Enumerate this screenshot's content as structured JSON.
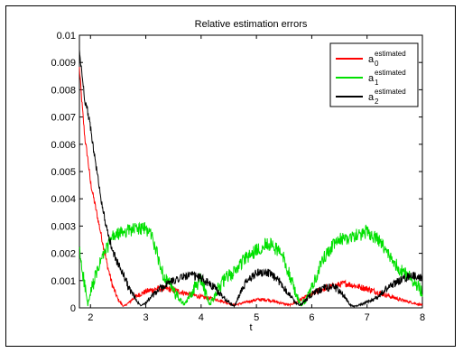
{
  "chart_data": {
    "type": "line",
    "title": "Relative estimation errors",
    "xlabel": "t",
    "ylabel": "",
    "xlim": [
      1.8,
      8
    ],
    "ylim": [
      0,
      0.01
    ],
    "x_ticks": [
      2,
      3,
      4,
      5,
      6,
      7,
      8
    ],
    "y_ticks": [
      0,
      0.001,
      0.002,
      0.003,
      0.004,
      0.005,
      0.006,
      0.007,
      0.008,
      0.009,
      0.01
    ],
    "y_tick_labels": [
      "0",
      "0.001",
      "0.002",
      "0.003",
      "0.004",
      "0.005",
      "0.006",
      "0.007",
      "0.008",
      "0.009",
      "0.01"
    ],
    "grid": false,
    "legend_position": "top-right",
    "series": [
      {
        "name": "a0 estimated",
        "name_base": "a",
        "name_sub": "0",
        "name_sup": "estimated",
        "color": "#ff0000",
        "noise": 0.00012,
        "x": [
          1.8,
          1.85,
          1.9,
          1.95,
          2.0,
          2.1,
          2.2,
          2.3,
          2.4,
          2.5,
          2.6,
          2.7,
          2.8,
          2.9,
          3.0,
          3.2,
          3.4,
          3.6,
          3.8,
          4.0,
          4.3,
          4.6,
          4.8,
          5.0,
          5.2,
          5.4,
          5.6,
          5.8,
          6.0,
          6.2,
          6.4,
          6.6,
          6.8,
          7.0,
          7.3,
          7.6,
          7.8,
          8.0
        ],
        "y": [
          0.0088,
          0.0074,
          0.0062,
          0.0055,
          0.0046,
          0.0036,
          0.0026,
          0.0016,
          0.0008,
          0.0003,
          5e-05,
          0.0002,
          0.0004,
          0.0005,
          0.0006,
          0.0007,
          0.0007,
          0.0006,
          0.0005,
          0.0004,
          0.0003,
          0.0001,
          0.0002,
          0.0003,
          0.0003,
          0.0002,
          0.0001,
          0.0003,
          0.0005,
          0.0007,
          0.0008,
          0.0009,
          0.0008,
          0.0007,
          0.0005,
          0.0003,
          0.0002,
          0.0001
        ]
      },
      {
        "name": "a1 estimated",
        "name_base": "a",
        "name_sub": "1",
        "name_sup": "estimated",
        "color": "#00e000",
        "noise": 0.00025,
        "x": [
          1.8,
          1.85,
          1.9,
          1.95,
          2.05,
          2.2,
          2.4,
          2.6,
          2.8,
          3.0,
          3.1,
          3.2,
          3.3,
          3.5,
          3.7,
          3.9,
          4.0,
          4.15,
          4.3,
          4.45,
          4.6,
          4.7,
          4.8,
          5.0,
          5.2,
          5.4,
          5.5,
          5.6,
          5.7,
          5.8,
          5.9,
          6.0,
          6.1,
          6.2,
          6.35,
          6.5,
          6.7,
          6.9,
          7.0,
          7.2,
          7.4,
          7.6,
          7.8,
          8.0
        ],
        "y": [
          0.0021,
          0.0014,
          0.0008,
          0.0001,
          0.0009,
          0.0018,
          0.0026,
          0.0028,
          0.0029,
          0.0029,
          0.0027,
          0.002,
          0.0013,
          0.0006,
          0.0001,
          0.0008,
          0.0011,
          0.0001,
          0.0007,
          0.0011,
          0.0013,
          0.0016,
          0.0018,
          0.0021,
          0.0024,
          0.0021,
          0.0018,
          0.0012,
          0.0006,
          0.0001,
          0.0003,
          0.0007,
          0.0012,
          0.0018,
          0.0022,
          0.0025,
          0.0026,
          0.0027,
          0.0028,
          0.0025,
          0.0019,
          0.0014,
          0.0011,
          0.0006
        ]
      },
      {
        "name": "a2 estimated",
        "name_base": "a",
        "name_sub": "2",
        "name_sup": "estimated",
        "color": "#000000",
        "noise": 0.00015,
        "x": [
          1.8,
          1.85,
          1.9,
          1.95,
          2.0,
          2.1,
          2.2,
          2.3,
          2.4,
          2.5,
          2.6,
          2.7,
          2.8,
          2.85,
          2.9,
          3.0,
          3.2,
          3.4,
          3.6,
          3.8,
          4.0,
          4.2,
          4.4,
          4.6,
          4.7,
          4.8,
          5.0,
          5.2,
          5.4,
          5.6,
          5.7,
          5.8,
          6.0,
          6.2,
          6.4,
          6.5,
          6.6,
          6.7,
          6.8,
          7.0,
          7.2,
          7.4,
          7.6,
          7.8,
          8.0
        ],
        "y": [
          0.0094,
          0.0085,
          0.0076,
          0.0072,
          0.0066,
          0.0052,
          0.0039,
          0.0028,
          0.0021,
          0.0016,
          0.0012,
          0.0007,
          0.0004,
          0.0002,
          0.0001,
          0.0002,
          0.0006,
          0.0009,
          0.0011,
          0.0012,
          0.0011,
          0.0008,
          0.0004,
          5e-05,
          0.0005,
          0.0009,
          0.0013,
          0.0013,
          0.001,
          0.0005,
          0.0002,
          0.0001,
          0.0005,
          0.0007,
          0.0008,
          0.0006,
          0.0004,
          0.0001,
          5e-05,
          0.0002,
          0.0004,
          0.0008,
          0.001,
          0.0012,
          0.0011
        ]
      }
    ]
  }
}
